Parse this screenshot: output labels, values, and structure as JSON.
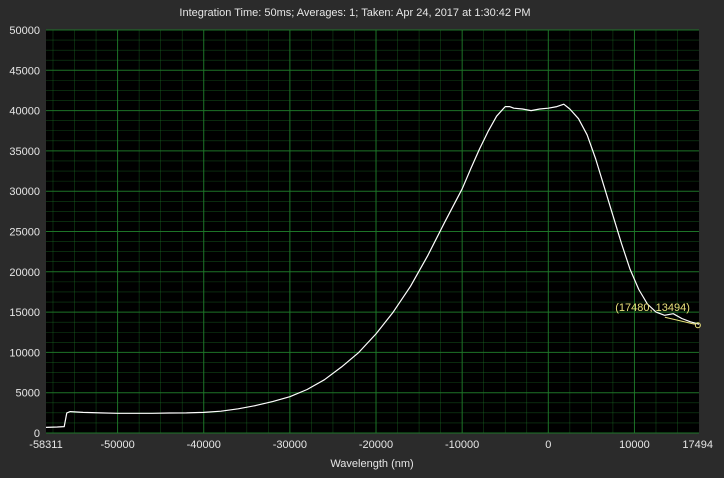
{
  "chart_data": {
    "type": "line",
    "title": "Integration Time: 50ms;  Averages: 1;  Taken: Apr 24, 2017 at 1:30:42 PM",
    "xlabel": "Wavelength (nm)",
    "ylabel": "",
    "xlim": [
      -58311,
      17494
    ],
    "ylim": [
      0,
      50000
    ],
    "x_ticks": [
      -58311,
      -50000,
      -40000,
      -30000,
      -20000,
      -10000,
      0,
      10000,
      17494
    ],
    "x_tick_labels": [
      "-58311",
      "-50000",
      "-40000",
      "-30000",
      "-20000",
      "-10000",
      "0",
      "10000",
      "17494"
    ],
    "y_ticks": [
      0,
      5000,
      10000,
      15000,
      20000,
      25000,
      30000,
      35000,
      40000,
      45000,
      50000
    ],
    "y_tick_labels": [
      "0",
      "5000",
      "10000",
      "15000",
      "20000",
      "25000",
      "30000",
      "35000",
      "40000",
      "45000",
      "50000"
    ],
    "grid": true,
    "legend": "none",
    "background_color": "#000000",
    "frame_color": "#2b2b2b",
    "grid_color": "#1f7a2a",
    "line_color": "#ffffff",
    "cursor_color": "#e8e07a",
    "series": [
      {
        "x": [
          -58311,
          -57000,
          -56200,
          -55900,
          -55500,
          -54000,
          -52000,
          -50000,
          -48000,
          -46000,
          -44000,
          -42000,
          -40000,
          -38000,
          -36000,
          -34000,
          -32000,
          -30000,
          -28000,
          -26000,
          -24000,
          -22000,
          -20000,
          -18000,
          -16000,
          -14000,
          -12000,
          -10000,
          -9000,
          -8000,
          -7000,
          -6000,
          -5000,
          -4500,
          -4000,
          -3000,
          -2000,
          -1000,
          0,
          1000,
          1800,
          2500,
          3500,
          4500,
          5500,
          6500,
          7500,
          8500,
          9500,
          10500,
          11500,
          12500,
          13500,
          14500,
          15500,
          16500,
          17480,
          17494
        ],
        "y": [
          700,
          750,
          800,
          2500,
          2650,
          2550,
          2500,
          2450,
          2450,
          2450,
          2480,
          2500,
          2550,
          2700,
          3000,
          3400,
          3900,
          4500,
          5400,
          6600,
          8200,
          10000,
          12300,
          15000,
          18200,
          22000,
          26200,
          30300,
          32800,
          35200,
          37400,
          39300,
          40500,
          40500,
          40300,
          40200,
          40000,
          40200,
          40300,
          40500,
          40800,
          40200,
          39000,
          37000,
          34000,
          30500,
          27000,
          23500,
          20300,
          17800,
          16000,
          15000,
          14600,
          14800,
          14200,
          13800,
          13494,
          13494
        ]
      }
    ],
    "cursor": {
      "label": "(17480, 13494)",
      "x": 17480,
      "y": 13494
    }
  }
}
